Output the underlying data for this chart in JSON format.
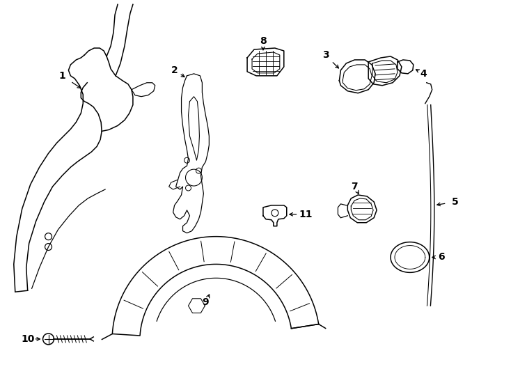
{
  "background_color": "#ffffff",
  "line_color": "#000000",
  "label_color": "#000000"
}
